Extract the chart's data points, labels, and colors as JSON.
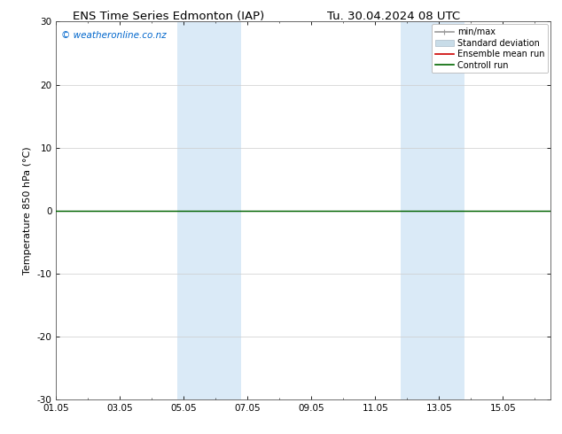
{
  "title_left": "ENS Time Series Edmonton (IAP)",
  "title_right": "Tu. 30.04.2024 08 UTC",
  "ylabel": "Temperature 850 hPa (°C)",
  "ylim": [
    -30,
    30
  ],
  "yticks": [
    -30,
    -20,
    -10,
    0,
    10,
    20,
    30
  ],
  "xtick_labels": [
    "01.05",
    "03.05",
    "05.05",
    "07.05",
    "09.05",
    "11.05",
    "13.05",
    "15.05"
  ],
  "xtick_positions": [
    0,
    2,
    4,
    6,
    8,
    10,
    12,
    14
  ],
  "x_min": 0,
  "x_max": 15.5,
  "watermark": "© weatheronline.co.nz",
  "watermark_color": "#0066cc",
  "bg_color": "#ffffff",
  "shaded_bands": [
    {
      "x_start": 3.8,
      "x_end": 5.8,
      "color": "#daeaf7"
    },
    {
      "x_start": 10.8,
      "x_end": 12.8,
      "color": "#daeaf7"
    }
  ],
  "green_line_y": 0,
  "legend_items": [
    {
      "label": "min/max",
      "color": "#999999",
      "lw": 1.2
    },
    {
      "label": "Standard deviation",
      "color": "#c8dce8",
      "lw": 6
    },
    {
      "label": "Ensemble mean run",
      "color": "#cc0000",
      "lw": 1.2
    },
    {
      "label": "Controll run",
      "color": "#006600",
      "lw": 1.2
    }
  ],
  "grid_color": "#cccccc",
  "zero_line_color": "#333333",
  "axis_linewidth": 0.6,
  "title_fontsize": 9.5,
  "label_fontsize": 8,
  "tick_fontsize": 7.5,
  "legend_fontsize": 7
}
